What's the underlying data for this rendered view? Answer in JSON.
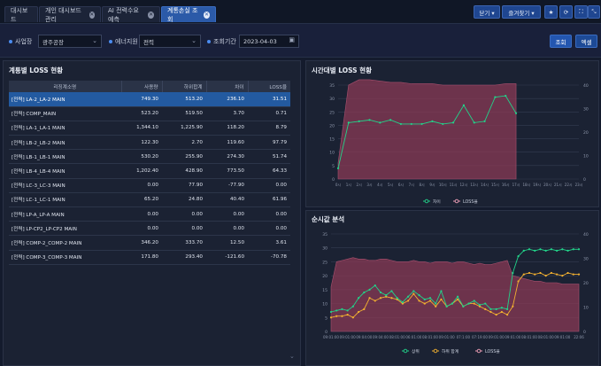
{
  "tabs": [
    {
      "label": "대시보드",
      "closable": false,
      "active": false
    },
    {
      "label": "개인 대시보드 관리",
      "closable": true,
      "active": false
    },
    {
      "label": "AI 전력수요예측",
      "closable": true,
      "active": false
    },
    {
      "label": "계통손실 조회",
      "closable": true,
      "active": true
    }
  ],
  "toolbar": {
    "close_label": "닫기 ▾",
    "favorites_label": "즐겨찾기 ▾",
    "star_icon": "★",
    "refresh_icon": "⟳",
    "fullscreen_icon": "⛶",
    "collapse_icon": "⤡"
  },
  "filters": {
    "site_label": "사업장",
    "site_value": "광주공장",
    "energy_label": "에너지원",
    "energy_value": "전력",
    "period_label": "조회기간",
    "period_value": "2023-04-03",
    "search_button": "조회",
    "excel_button": "엑셀"
  },
  "left_panel": {
    "title": "계통별 LOSS 현황",
    "columns": [
      "리징계소명",
      "사용량",
      "하위합계",
      "차이",
      "LOSS율"
    ],
    "rows": [
      {
        "name": "[전력] LA-2_LA-2 MAIN",
        "usage": "749.30",
        "sub": "513.20",
        "diff": "236.10",
        "loss": "31.51",
        "selected": true
      },
      {
        "name": "[전력] COMP_MAIN",
        "usage": "523.20",
        "sub": "519.50",
        "diff": "3.70",
        "loss": "0.71"
      },
      {
        "name": "[전력] LA-1_LA-1 MAIN",
        "usage": "1,344.10",
        "sub": "1,225.90",
        "diff": "118.20",
        "loss": "8.79"
      },
      {
        "name": "[전력] LB-2_LB-2 MAIN",
        "usage": "122.30",
        "sub": "2.70",
        "diff": "119.60",
        "loss": "97.79"
      },
      {
        "name": "[전력] LB-1_LB-1 MAIN",
        "usage": "530.20",
        "sub": "255.90",
        "diff": "274.30",
        "loss": "51.74"
      },
      {
        "name": "[전력] LB-4_LB-4 MAIN",
        "usage": "1,202.40",
        "sub": "428.90",
        "diff": "773.50",
        "loss": "64.33"
      },
      {
        "name": "[전력] LC-3_LC-3 MAIN",
        "usage": "0.00",
        "sub": "77.90",
        "diff": "-77.90",
        "loss": "0.00"
      },
      {
        "name": "[전력] LC-1_LC-1 MAIN",
        "usage": "65.20",
        "sub": "24.80",
        "diff": "40.40",
        "loss": "61.96"
      },
      {
        "name": "[전력] LP-A_LP-A MAIN",
        "usage": "0.00",
        "sub": "0.00",
        "diff": "0.00",
        "loss": "0.00"
      },
      {
        "name": "[전력] LP-CP2_LP-CP2 MAIN",
        "usage": "0.00",
        "sub": "0.00",
        "diff": "0.00",
        "loss": "0.00"
      },
      {
        "name": "[전력] COMP-2_COMP-2 MAIN",
        "usage": "346.20",
        "sub": "333.70",
        "diff": "12.50",
        "loss": "3.61"
      },
      {
        "name": "[전력] COMP-3_COMP-3 MAIN",
        "usage": "171.80",
        "sub": "293.40",
        "diff": "-121.60",
        "loss": "-70.78"
      }
    ]
  },
  "chart_data": [
    {
      "title": "시간대별 LOSS 현황",
      "type": "line",
      "y_left_ticks": [
        "0",
        "5",
        "10",
        "15",
        "20",
        "25",
        "30",
        "35"
      ],
      "y_right_ticks": [
        "0",
        "10",
        "20",
        "30",
        "40"
      ],
      "x_ticks": [
        "0시",
        "1시",
        "2시",
        "3시",
        "4시",
        "5시",
        "6시",
        "7시",
        "8시",
        "9시",
        "10시",
        "11시",
        "12시",
        "13시",
        "14시",
        "15시",
        "16시",
        "17시",
        "18시",
        "19시",
        "20시",
        "21시",
        "22시",
        "23시"
      ],
      "legend": [
        {
          "label": "차이",
          "color": "#22d38a"
        },
        {
          "label": "LOSS율",
          "color": "#f2a0b8"
        }
      ],
      "diff_series": [
        4,
        21,
        21.5,
        22,
        21,
        22,
        20.5,
        20.5,
        20.5,
        21.5,
        20.5,
        21,
        27.5,
        21,
        21.5,
        30.5,
        31,
        24.5
      ],
      "loss_area": [
        6,
        35,
        37,
        37,
        36.5,
        36,
        36,
        35.5,
        35.5,
        35.5,
        35,
        35,
        35,
        35,
        35,
        35,
        35.5,
        35.5
      ],
      "y_left_max": 35,
      "y_right_max": 40
    },
    {
      "title": "순시값 분석",
      "type": "line",
      "y_left_ticks": [
        "0",
        "5",
        "10",
        "15",
        "20",
        "25",
        "30",
        "35"
      ],
      "y_right_ticks": [
        "0",
        "10",
        "20",
        "30",
        "40"
      ],
      "x_ticks": [
        "09:01:00",
        "09:01:00",
        "09:04:00",
        "09:04:00",
        "08:01:00",
        "06:01:00",
        "08:01:00",
        "09:01:00",
        "07:1:00",
        "07:19:00",
        "09:01:00",
        "09:01:00",
        "08:01:00",
        "08:01:00",
        "09:01:00",
        "22:06"
      ],
      "legend": [
        {
          "label": "상위",
          "color": "#22d38a"
        },
        {
          "label": "하위 합계",
          "color": "#f2b030"
        },
        {
          "label": "LOSS율",
          "color": "#f2a0b8"
        }
      ],
      "upper_series": [
        7,
        7.5,
        8,
        7.5,
        9,
        12,
        14,
        15,
        16.5,
        14,
        13,
        14.5,
        12,
        10.5,
        12.5,
        14.5,
        13,
        11.5,
        12,
        10,
        14.5,
        9,
        10,
        12.5,
        9,
        10,
        11,
        9.5,
        10,
        8,
        8,
        8.5,
        8,
        21,
        27,
        29,
        29.5,
        29,
        29.5,
        29,
        29.5,
        29,
        29.5,
        29,
        29.5,
        29.5
      ],
      "lower_series": [
        5,
        5.5,
        5.5,
        6,
        5,
        7,
        8,
        12,
        11,
        12,
        12.5,
        12,
        11.5,
        10,
        11,
        13.5,
        11,
        10,
        11,
        9,
        11.5,
        9,
        10,
        11.5,
        9,
        10,
        10,
        9,
        8,
        7,
        6,
        7,
        6,
        9,
        18,
        20.5,
        21,
        20.5,
        21,
        20,
        21,
        20.5,
        20,
        21,
        20.5,
        20.5
      ],
      "loss_area": [
        16,
        25,
        25.5,
        26,
        26.5,
        26,
        26,
        25.5,
        25.5,
        26,
        26,
        25.5,
        25,
        25,
        25,
        25.5,
        25,
        25,
        24.5,
        25,
        25,
        25,
        24.5,
        25,
        25,
        24.5,
        24,
        24.5,
        24,
        24,
        24.5,
        25,
        25.5,
        20,
        19.5,
        19,
        18.5,
        18,
        18,
        17.5,
        17.5,
        17.5,
        17,
        17,
        17,
        17
      ],
      "y_left_max": 35,
      "y_right_max": 40
    }
  ]
}
